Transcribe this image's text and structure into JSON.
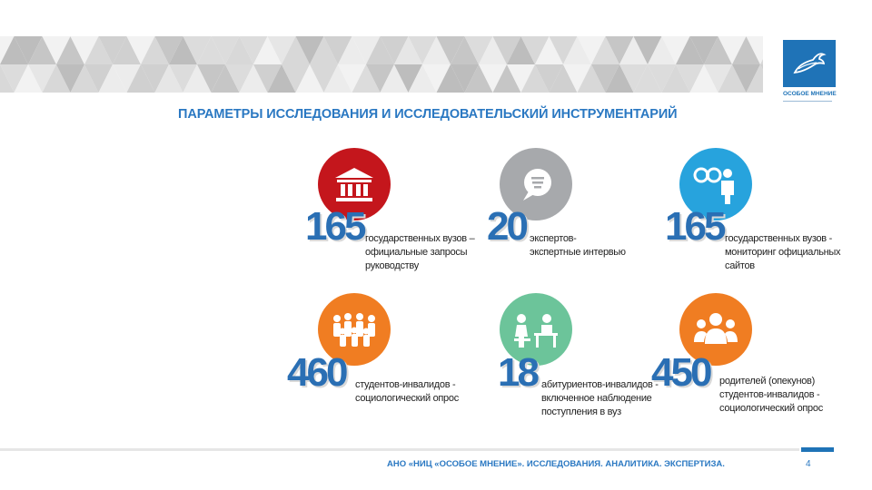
{
  "logo": {
    "name": "ОСОБОЕ МНЕНИЕ"
  },
  "title": "ПАРАМЕТРЫ ИССЛЕДОВАНИЯ И ИССЛЕДОВАТЕЛЬСКИЙ ИНСТРУМЕНТАРИЙ",
  "stats": [
    {
      "number": "165",
      "color": "#c4161c",
      "icon": "university-building-icon",
      "lines": [
        "государственных вузов –",
        "официальные запросы",
        "руководству"
      ]
    },
    {
      "number": "20",
      "color": "#a7a9ac",
      "icon": "chat-bubble-icon",
      "lines": [
        "экспертов-",
        "экспертные интервью"
      ]
    },
    {
      "number": "165",
      "color": "#27a3dd",
      "icon": "binoculars-person-icon",
      "lines": [
        "государственных вузов -",
        "мониторинг официальных",
        "сайтов"
      ]
    },
    {
      "number": "460",
      "color": "#f07d22",
      "icon": "people-group-icon",
      "lines": [
        "студентов-инвалидов -",
        "социологический опрос"
      ]
    },
    {
      "number": "18",
      "color": "#6cc49a",
      "icon": "observation-desk-icon",
      "lines": [
        "абитуриентов-инвалидов -",
        "включенное наблюдение",
        "поступления в вуз"
      ]
    },
    {
      "number": "450",
      "color": "#f07d22",
      "icon": "parents-group-icon",
      "lines": [
        "родителей (опекунов)",
        "студентов-инвалидов -",
        "социологический опрос"
      ]
    }
  ],
  "footer": "АНО «НИЦ «ОСОБОЕ МНЕНИЕ». ИССЛЕДОВАНИЯ. АНАЛИТИКА. ЭКСПЕРТИЗА.",
  "page_number": "4"
}
